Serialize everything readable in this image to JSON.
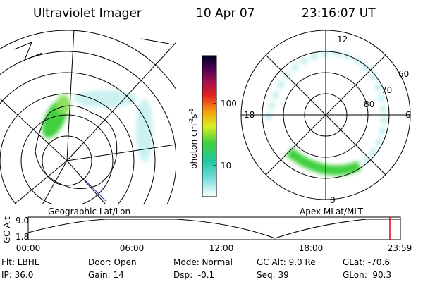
{
  "header": {
    "instrument": "Ultraviolet Imager",
    "date": "10 Apr 07",
    "time": "23:16:07 UT"
  },
  "panels": {
    "left_label": "Geographic Lat/Lon",
    "right_label": "Apex MLat/MLT",
    "mlt_labels": {
      "top": "12",
      "left": "18",
      "right": "6",
      "bottom": "0"
    },
    "mlat_labels": [
      "60",
      "70",
      "80"
    ]
  },
  "colorbar": {
    "unit": "photon cm",
    "exp1": "-2",
    "unit2": "s",
    "exp2": "-1",
    "ticks": [
      "100",
      "10"
    ]
  },
  "timeline": {
    "axis_label": "GC Alt",
    "y_labels": [
      "9.0",
      "1.8"
    ],
    "time_labels": [
      "00:00",
      "06:00",
      "12:00",
      "18:00",
      "23:59"
    ]
  },
  "footer": {
    "rows": [
      [
        "Flt: LBHL",
        "Door: Open",
        "Mode: Normal",
        "GC Alt: 9.0 Re",
        "GLat: -70.6"
      ],
      [
        "IP: 36.0",
        "Gain: 14",
        "Dsp:  -0.1",
        "Seq: 39",
        "GLon:  90.3"
      ]
    ]
  }
}
